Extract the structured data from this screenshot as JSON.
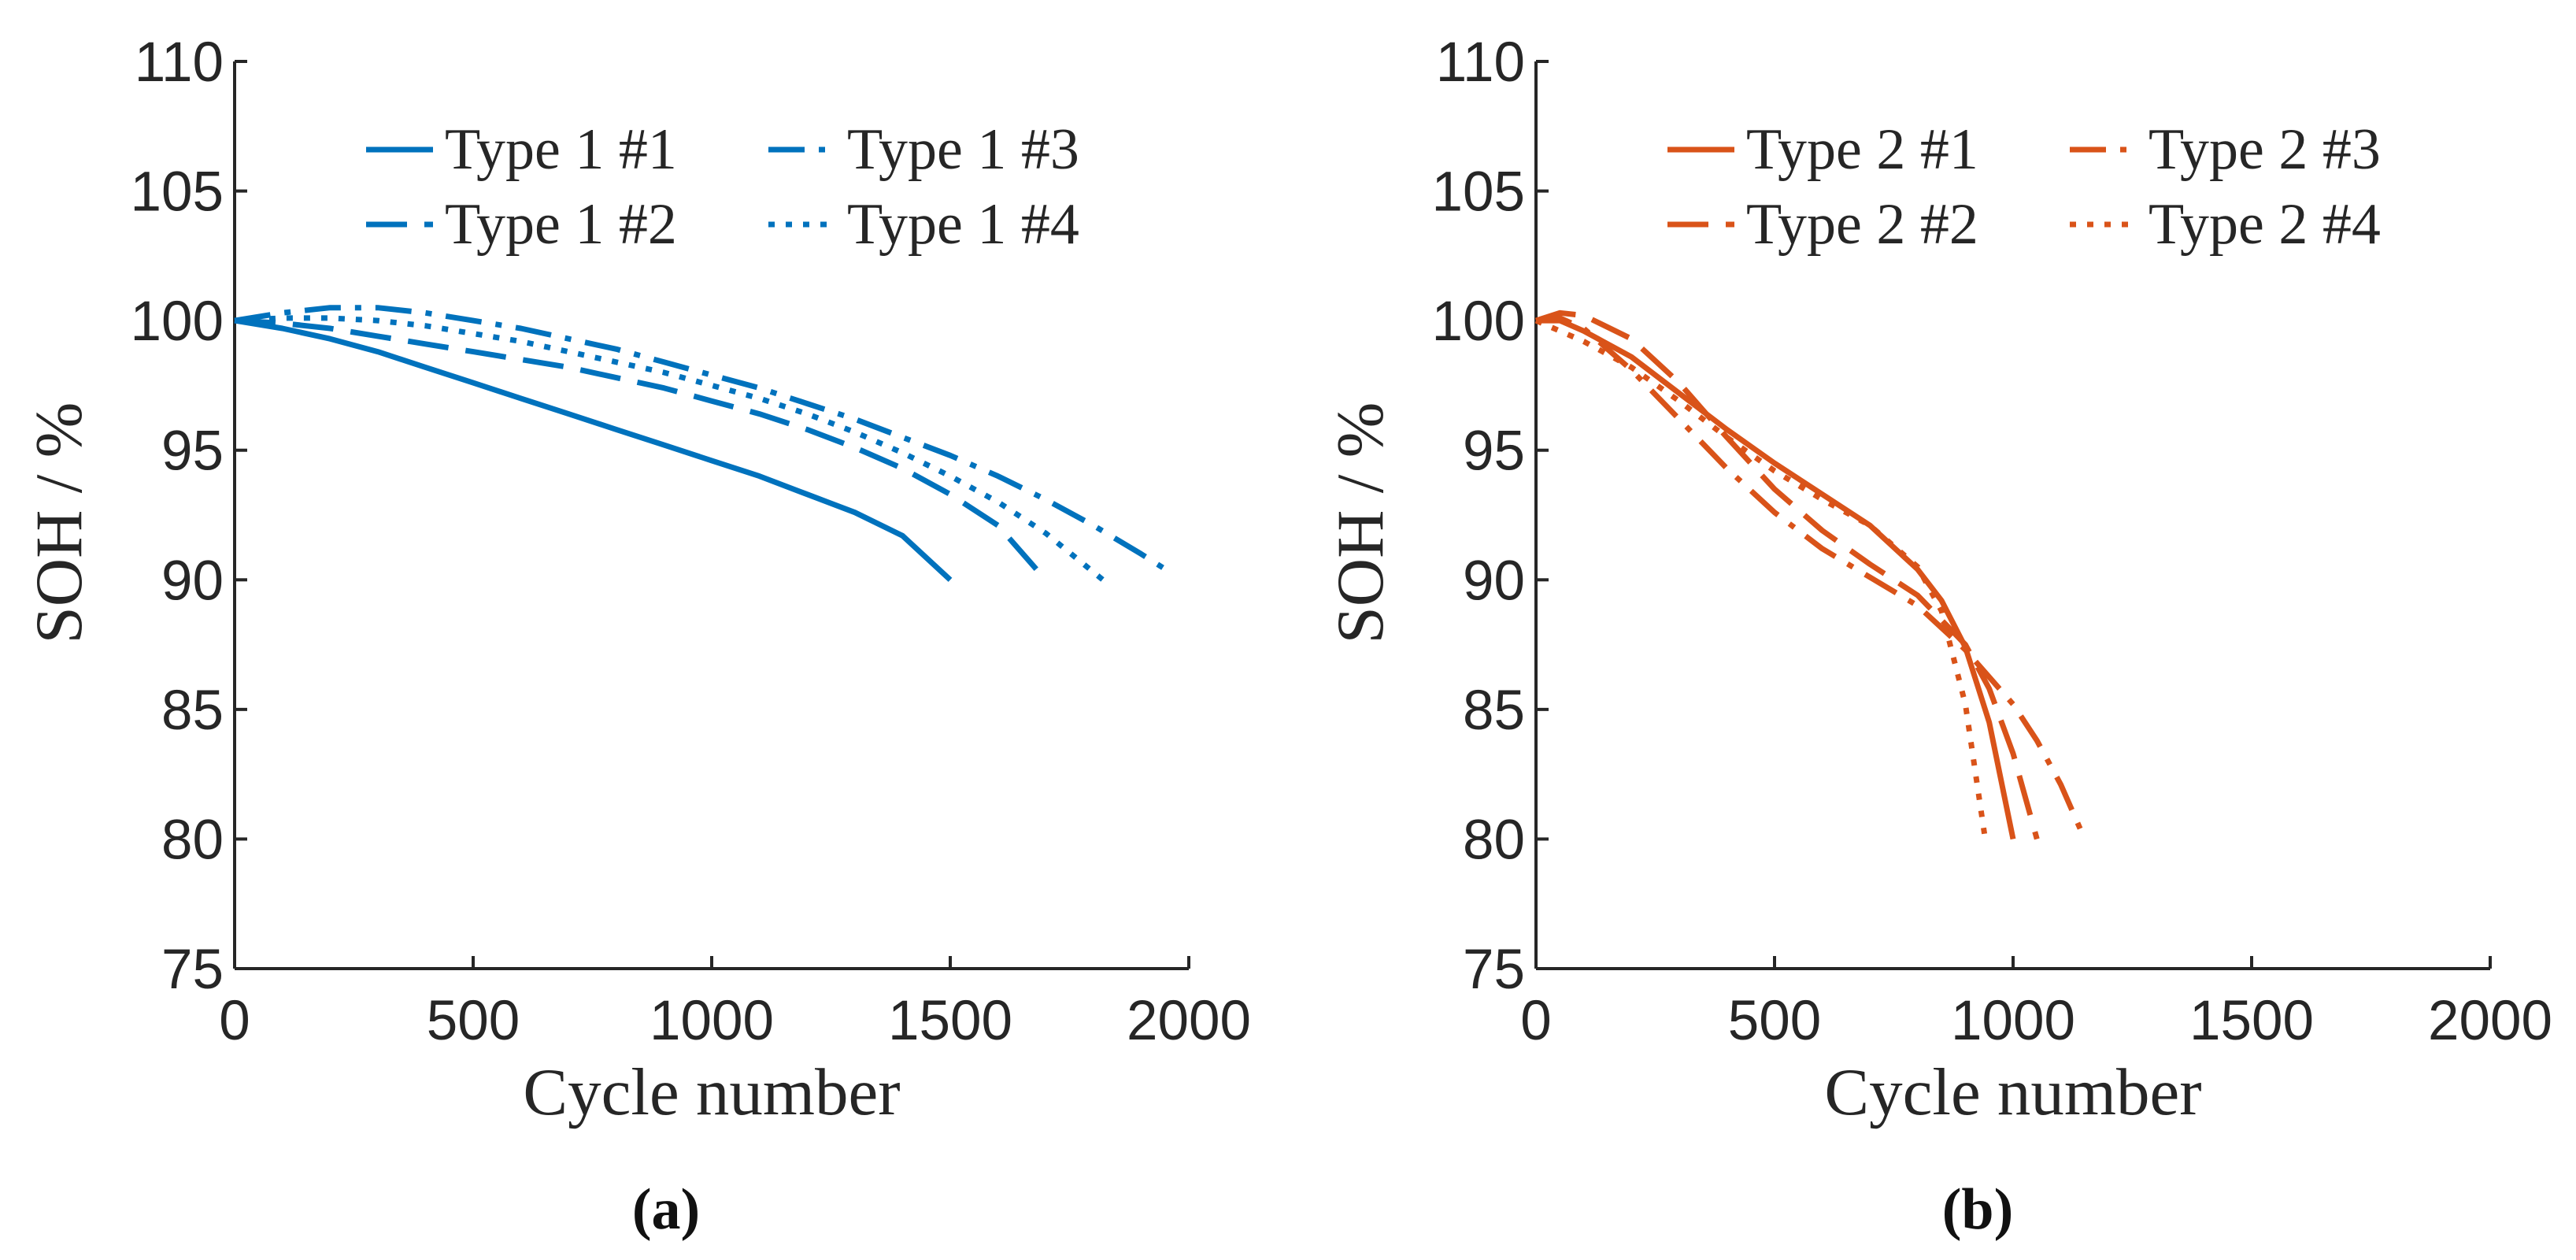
{
  "chart_data": [
    {
      "type": "line",
      "panel_label": "(a)",
      "color": "#0072BD",
      "xlabel": "Cycle number",
      "ylabel": "SOH / %",
      "xlim": [
        0,
        2000
      ],
      "ylim": [
        75,
        110
      ],
      "xticks": [
        "0",
        "500",
        "1000",
        "1500",
        "2000"
      ],
      "yticks": [
        "75",
        "80",
        "85",
        "90",
        "95",
        "100",
        "105",
        "110"
      ],
      "legend_position": "top-right",
      "series": [
        {
          "name": "Type 1 #1",
          "style": "solid",
          "x": [
            0,
            100,
            200,
            300,
            400,
            500,
            600,
            700,
            800,
            900,
            1000,
            1100,
            1200,
            1300,
            1400,
            1500
          ],
          "y": [
            100,
            99.7,
            99.3,
            98.8,
            98.2,
            97.6,
            97.0,
            96.4,
            95.8,
            95.2,
            94.6,
            94.0,
            93.3,
            92.6,
            91.7,
            90.0
          ]
        },
        {
          "name": "Type 1 #2",
          "style": "dashed",
          "x": [
            0,
            100,
            200,
            300,
            400,
            500,
            600,
            700,
            800,
            900,
            1000,
            1100,
            1200,
            1300,
            1400,
            1500,
            1600,
            1700
          ],
          "y": [
            100,
            99.9,
            99.7,
            99.4,
            99.1,
            98.8,
            98.5,
            98.2,
            97.8,
            97.4,
            96.9,
            96.4,
            95.8,
            95.1,
            94.3,
            93.3,
            92.1,
            90.0
          ]
        },
        {
          "name": "Type 1 #3",
          "style": "dashdot",
          "x": [
            0,
            100,
            200,
            300,
            400,
            500,
            600,
            700,
            800,
            900,
            1000,
            1100,
            1200,
            1300,
            1400,
            1500,
            1600,
            1700,
            1800,
            1900,
            1960
          ],
          "y": [
            100,
            100.3,
            100.5,
            100.5,
            100.3,
            100.0,
            99.7,
            99.3,
            98.9,
            98.4,
            97.9,
            97.4,
            96.8,
            96.2,
            95.5,
            94.8,
            94.0,
            93.1,
            92.1,
            91.0,
            90.3
          ]
        },
        {
          "name": "Type 1 #4",
          "style": "dotted",
          "x": [
            0,
            100,
            200,
            300,
            400,
            500,
            600,
            700,
            800,
            900,
            1000,
            1100,
            1200,
            1300,
            1400,
            1500,
            1600,
            1700,
            1820
          ],
          "y": [
            100,
            100.1,
            100.1,
            100.0,
            99.8,
            99.5,
            99.2,
            98.8,
            98.4,
            98.0,
            97.5,
            97.0,
            96.4,
            95.7,
            94.9,
            94.0,
            93.0,
            91.8,
            90.0
          ]
        }
      ]
    },
    {
      "type": "line",
      "panel_label": "(b)",
      "color": "#D95319",
      "xlabel": "Cycle number",
      "ylabel": "SOH / %",
      "xlim": [
        0,
        2000
      ],
      "ylim": [
        75,
        110
      ],
      "xticks": [
        "0",
        "500",
        "1000",
        "1500",
        "2000"
      ],
      "yticks": [
        "75",
        "80",
        "85",
        "90",
        "95",
        "100",
        "105",
        "110"
      ],
      "legend_position": "top-right",
      "series": [
        {
          "name": "Type 2 #1",
          "style": "solid",
          "x": [
            0,
            50,
            100,
            200,
            300,
            400,
            500,
            600,
            700,
            800,
            850,
            900,
            950,
            1000
          ],
          "y": [
            100,
            100.0,
            99.6,
            98.6,
            97.2,
            95.8,
            94.5,
            93.3,
            92.1,
            90.4,
            89.2,
            87.4,
            84.5,
            80.0
          ]
        },
        {
          "name": "Type 2 #2",
          "style": "dashed",
          "x": [
            0,
            50,
            100,
            200,
            300,
            400,
            500,
            600,
            700,
            800,
            900,
            950,
            1000,
            1050
          ],
          "y": [
            100,
            100.3,
            100.2,
            99.3,
            97.6,
            95.5,
            93.5,
            91.9,
            90.6,
            89.4,
            87.5,
            85.8,
            83.3,
            80.0
          ]
        },
        {
          "name": "Type 2 #3",
          "style": "dashdot",
          "x": [
            0,
            50,
            100,
            200,
            300,
            400,
            500,
            600,
            700,
            800,
            900,
            1000,
            1050,
            1100,
            1150
          ],
          "y": [
            100,
            100.1,
            99.7,
            98.1,
            96.2,
            94.3,
            92.6,
            91.2,
            90.1,
            89.0,
            87.3,
            85.2,
            83.8,
            82.1,
            80.0
          ]
        },
        {
          "name": "Type 2 #4",
          "style": "dotted",
          "x": [
            0,
            50,
            100,
            200,
            300,
            400,
            500,
            600,
            700,
            800,
            850,
            900,
            940
          ],
          "y": [
            100,
            99.6,
            99.2,
            98.2,
            96.9,
            95.5,
            94.2,
            93.1,
            92.1,
            90.5,
            88.8,
            85.2,
            80.2
          ]
        }
      ]
    }
  ]
}
